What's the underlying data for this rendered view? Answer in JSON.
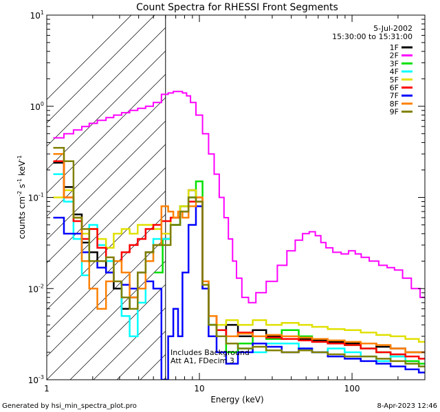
{
  "chart_data": {
    "type": "line",
    "title": "Count Spectra for RHESSI Front Segments",
    "xlabel": "Energy (keV)",
    "ylabel_base": "counts cm",
    "ylabel_exp1": "-2",
    "ylabel_mid": " s",
    "ylabel_exp2": "-1",
    "ylabel_end": " keV",
    "ylabel_exp3": "-1",
    "xscale": "log",
    "yscale": "log",
    "xlim": [
      1,
      300
    ],
    "ylim": [
      0.001,
      10
    ],
    "x_ticks": [
      {
        "value": 1,
        "label": "1"
      },
      {
        "value": 10,
        "label": "10"
      },
      {
        "value": 100,
        "label": "100"
      }
    ],
    "y_ticks": [
      {
        "value": 0.001,
        "base": "10",
        "exp": "-3"
      },
      {
        "value": 0.01,
        "base": "10",
        "exp": "-2"
      },
      {
        "value": 0.1,
        "base": "10",
        "exp": "-1"
      },
      {
        "value": 1,
        "base": "10",
        "exp": "0"
      },
      {
        "value": 10,
        "base": "10",
        "exp": "1"
      }
    ],
    "attenuator_boundary_keV": 6,
    "date": "5-Jul-2002",
    "time_range": "15:30:00 to 15:31:00",
    "annotation_lines": [
      "Includes Background",
      "Att A1, FDecim 3"
    ],
    "footer_left": "Generated by hsi_min_spectra_plot.pro",
    "footer_right": "8-Apr-2023 12:46",
    "series": [
      {
        "name": "1F",
        "color": "#000000",
        "x": [
          1.2,
          1.4,
          1.6,
          1.8,
          2.0,
          2.3,
          2.6,
          2.9,
          3.3,
          3.7,
          4.2,
          4.7,
          5.3,
          6,
          7,
          8,
          9,
          10,
          11,
          12,
          14,
          16,
          20,
          25,
          30,
          40,
          50,
          60,
          80,
          100,
          130,
          160,
          200,
          250,
          300
        ],
        "y": [
          0.24,
          0.13,
          0.065,
          0.032,
          0.025,
          0.02,
          0.015,
          0.01,
          0.006,
          0.008,
          0.015,
          0.025,
          0.03,
          0.035,
          0.05,
          0.08,
          0.12,
          0.1,
          0.01,
          0.004,
          0.003,
          0.004,
          0.003,
          0.0035,
          0.003,
          0.003,
          0.0028,
          0.0027,
          0.0026,
          0.0025,
          0.0025,
          0.0023,
          0.0022,
          0.002,
          0.002
        ]
      },
      {
        "name": "2F",
        "color": "#ff00ff",
        "x": [
          1.2,
          1.4,
          1.6,
          1.8,
          2.0,
          2.3,
          2.6,
          2.9,
          3.3,
          3.7,
          4.2,
          4.7,
          5.3,
          6,
          6.5,
          7,
          7.5,
          8,
          8.5,
          9,
          10,
          11,
          12,
          13,
          14,
          15,
          16,
          17,
          18,
          20,
          22,
          25,
          30,
          35,
          40,
          45,
          50,
          55,
          60,
          65,
          70,
          80,
          90,
          100,
          110,
          120,
          140,
          160,
          180,
          200,
          230,
          260,
          300
        ],
        "y": [
          0.45,
          0.5,
          0.55,
          0.6,
          0.65,
          0.7,
          0.75,
          0.8,
          0.85,
          0.9,
          0.95,
          1.0,
          1.1,
          1.35,
          1.4,
          1.45,
          1.45,
          1.4,
          1.3,
          1.1,
          0.8,
          0.5,
          0.3,
          0.18,
          0.1,
          0.06,
          0.035,
          0.02,
          0.013,
          0.008,
          0.007,
          0.009,
          0.012,
          0.018,
          0.026,
          0.034,
          0.04,
          0.042,
          0.038,
          0.032,
          0.028,
          0.025,
          0.024,
          0.026,
          0.024,
          0.022,
          0.02,
          0.018,
          0.017,
          0.016,
          0.013,
          0.01,
          0.008
        ]
      },
      {
        "name": "3F",
        "color": "#00e000",
        "x": [
          5.5,
          6,
          7,
          8,
          9,
          10,
          11,
          12,
          14,
          16,
          20,
          25,
          30,
          40,
          50,
          60,
          80,
          100,
          130,
          160,
          200,
          250,
          300
        ],
        "y": [
          0.015,
          0.035,
          0.05,
          0.08,
          0.1,
          0.15,
          0.012,
          0.004,
          0.003,
          0.002,
          0.0025,
          0.003,
          0.0028,
          0.0035,
          0.003,
          0.0026,
          0.0025,
          0.0024,
          0.0022,
          0.002,
          0.0018,
          0.0016,
          0.0015
        ]
      },
      {
        "name": "4F",
        "color": "#00ffff",
        "x": [
          1.2,
          1.4,
          1.6,
          1.8,
          2.0,
          2.3,
          2.6,
          2.9,
          3.3,
          3.7,
          4.2,
          4.7,
          5.3,
          6,
          7,
          8,
          9,
          10,
          11,
          12,
          14,
          16,
          20,
          25,
          30,
          40,
          50,
          60,
          80,
          100,
          130,
          160,
          200,
          250,
          300
        ],
        "y": [
          0.18,
          0.09,
          0.035,
          0.014,
          0.05,
          0.03,
          0.02,
          0.012,
          0.005,
          0.003,
          0.007,
          0.02,
          0.035,
          0.035,
          0.05,
          0.07,
          0.1,
          0.09,
          0.01,
          0.004,
          0.003,
          0.0025,
          0.0022,
          0.002,
          0.0025,
          0.0025,
          0.0022,
          0.002,
          0.0022,
          0.002,
          0.0018,
          0.0016,
          0.0018,
          0.0015,
          0.0014
        ]
      },
      {
        "name": "5F",
        "color": "#e0e000",
        "x": [
          1.2,
          1.4,
          1.6,
          1.8,
          2.0,
          2.3,
          2.6,
          2.9,
          3.3,
          3.7,
          4.2,
          4.7,
          5.3,
          6,
          7,
          8,
          9,
          10,
          11,
          12,
          14,
          16,
          20,
          25,
          30,
          40,
          50,
          60,
          80,
          100,
          130,
          160,
          200,
          250,
          300
        ],
        "y": [
          0.1,
          0.12,
          0.06,
          0.04,
          0.045,
          0.035,
          0.028,
          0.04,
          0.045,
          0.04,
          0.05,
          0.05,
          0.045,
          0.04,
          0.06,
          0.08,
          0.12,
          0.1,
          0.012,
          0.005,
          0.004,
          0.0045,
          0.004,
          0.0045,
          0.004,
          0.0042,
          0.004,
          0.0038,
          0.0036,
          0.0035,
          0.0033,
          0.0031,
          0.003,
          0.0028,
          0.0026
        ]
      },
      {
        "name": "6F",
        "color": "#ff0000",
        "x": [
          1.2,
          1.4,
          1.6,
          1.8,
          2.0,
          2.3,
          2.6,
          2.9,
          3.3,
          3.7,
          4.2,
          4.7,
          5.3,
          6,
          7,
          8,
          9,
          10,
          11,
          12,
          14,
          16,
          20,
          25,
          30,
          40,
          50,
          60,
          80,
          100,
          130,
          160,
          200,
          250,
          300
        ],
        "y": [
          0.25,
          0.1,
          0.055,
          0.035,
          0.045,
          0.028,
          0.022,
          0.02,
          0.025,
          0.03,
          0.035,
          0.045,
          0.05,
          0.055,
          0.06,
          0.07,
          0.09,
          0.09,
          0.01,
          0.005,
          0.0035,
          0.003,
          0.0033,
          0.003,
          0.0029,
          0.0028,
          0.0027,
          0.0026,
          0.0025,
          0.0024,
          0.0022,
          0.002,
          0.0019,
          0.0018,
          0.0017
        ]
      },
      {
        "name": "7F",
        "color": "#0000ff",
        "x": [
          1.2,
          1.4,
          1.6,
          1.8,
          2.0,
          2.3,
          2.6,
          2.9,
          3.3,
          3.7,
          4.2,
          4.7,
          5.3,
          6,
          6.5,
          7,
          7.5,
          8,
          9,
          10,
          11,
          12,
          14,
          16,
          20,
          25,
          30,
          40,
          50,
          60,
          80,
          100,
          130,
          160,
          200,
          250,
          300
        ],
        "y": [
          0.06,
          0.04,
          0.04,
          0.025,
          0.02,
          0.017,
          0.015,
          0.012,
          0.011,
          0.01,
          0.01,
          0.012,
          0.01,
          0.001,
          0.003,
          0.006,
          0.003,
          0.015,
          0.05,
          0.08,
          0.01,
          0.003,
          0.002,
          0.0015,
          0.002,
          0.0025,
          0.0023,
          0.002,
          0.0022,
          0.002,
          0.0018,
          0.0017,
          0.0016,
          0.0015,
          0.0014,
          0.0013,
          0.0012
        ]
      },
      {
        "name": "8F",
        "color": "#ff8000",
        "x": [
          1.2,
          1.4,
          1.6,
          1.8,
          2.0,
          2.3,
          2.6,
          2.9,
          3.3,
          3.7,
          4.2,
          4.7,
          5.3,
          6,
          6.5,
          7,
          7.5,
          8,
          9,
          10,
          11,
          12,
          14,
          16,
          20,
          25,
          30,
          40,
          50,
          60,
          80,
          100,
          130,
          160,
          200,
          250,
          300
        ],
        "y": [
          0.3,
          0.1,
          0.06,
          0.02,
          0.01,
          0.006,
          0.012,
          0.02,
          0.015,
          0.008,
          0.01,
          0.02,
          0.03,
          0.08,
          0.07,
          0.06,
          0.07,
          0.06,
          0.08,
          0.1,
          0.012,
          0.005,
          0.003,
          0.003,
          0.0032,
          0.003,
          0.0031,
          0.003,
          0.0029,
          0.0028,
          0.0027,
          0.0026,
          0.0025,
          0.0024,
          0.0022,
          0.002,
          0.002
        ]
      },
      {
        "name": "9F",
        "color": "#808000",
        "x": [
          1.2,
          1.4,
          1.6,
          1.8,
          2.0,
          2.3,
          2.6,
          2.9,
          3.3,
          3.7,
          4.2,
          4.7,
          5.3,
          6,
          7,
          8,
          9,
          10,
          11,
          12,
          14,
          16,
          20,
          25,
          30,
          40,
          50,
          60,
          80,
          100,
          130,
          160,
          200,
          250,
          300
        ],
        "y": [
          0.35,
          0.25,
          0.06,
          0.045,
          0.02,
          0.02,
          0.022,
          0.012,
          0.008,
          0.006,
          0.015,
          0.025,
          0.03,
          0.03,
          0.05,
          0.07,
          0.1,
          0.09,
          0.011,
          0.004,
          0.003,
          0.0025,
          0.0022,
          0.0023,
          0.0021,
          0.002,
          0.0021,
          0.002,
          0.0019,
          0.0018,
          0.0018,
          0.0017,
          0.0016,
          0.0015,
          0.0014
        ]
      }
    ]
  }
}
